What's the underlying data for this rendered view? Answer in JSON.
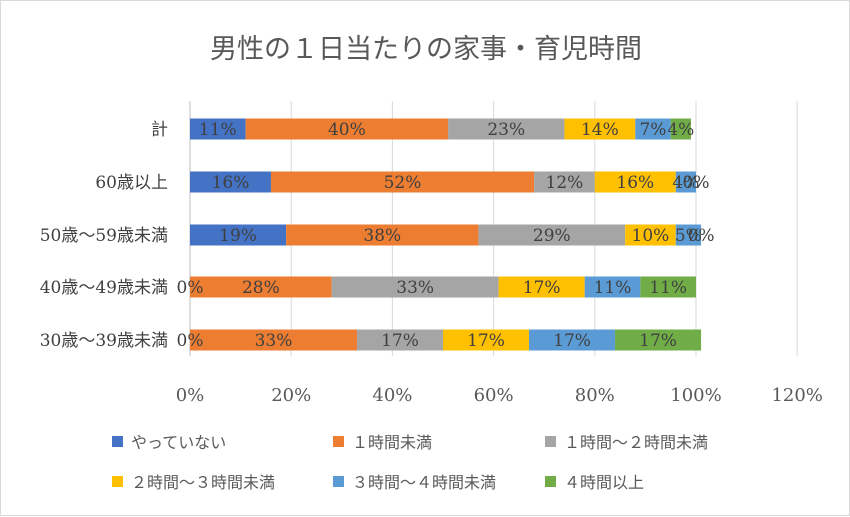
{
  "chart_data": {
    "type": "bar",
    "orientation": "horizontal",
    "stacked": "percent",
    "title": "男性の１日当たりの家事・育児時間",
    "categories": [
      "計",
      "60歳以上",
      "50歳～59歳未満",
      "40歳～49歳未満",
      "30歳～39歳未満"
    ],
    "series": [
      {
        "name": "やっていない",
        "color": "#4472c4",
        "values": [
          11,
          16,
          19,
          0,
          0
        ],
        "labels": [
          "11%",
          "16%",
          "19%",
          "0%",
          "0%"
        ]
      },
      {
        "name": "１時間未満",
        "color": "#ed7d31",
        "values": [
          40,
          52,
          38,
          28,
          33
        ],
        "labels": [
          "40%",
          "52%",
          "38%",
          "28%",
          "33%"
        ]
      },
      {
        "name": "１時間～２時間未満",
        "color": "#a5a5a5",
        "values": [
          23,
          12,
          29,
          33,
          17
        ],
        "labels": [
          "23%",
          "12%",
          "29%",
          "33%",
          "17%"
        ]
      },
      {
        "name": "２時間～３時間未満",
        "color": "#ffc000",
        "values": [
          14,
          16,
          10,
          17,
          17
        ],
        "labels": [
          "14%",
          "16%",
          "10%",
          "17%",
          "17%"
        ]
      },
      {
        "name": "３時間～４時間未満",
        "color": "#5b9bd5",
        "values": [
          7,
          4,
          5,
          11,
          17
        ],
        "labels": [
          "7%",
          "4%",
          "5%",
          "11%",
          "17%"
        ]
      },
      {
        "name": "４時間以上",
        "color": "#70ad47",
        "values": [
          4,
          0,
          0,
          11,
          17
        ],
        "labels": [
          "4%",
          "0%",
          "0%",
          "11%",
          "17%"
        ]
      }
    ],
    "xlim": [
      0,
      120
    ],
    "xticks": [
      "0%",
      "20%",
      "40%",
      "60%",
      "80%",
      "100%",
      "120%"
    ],
    "grid": "vertical",
    "legend_position": "bottom"
  }
}
